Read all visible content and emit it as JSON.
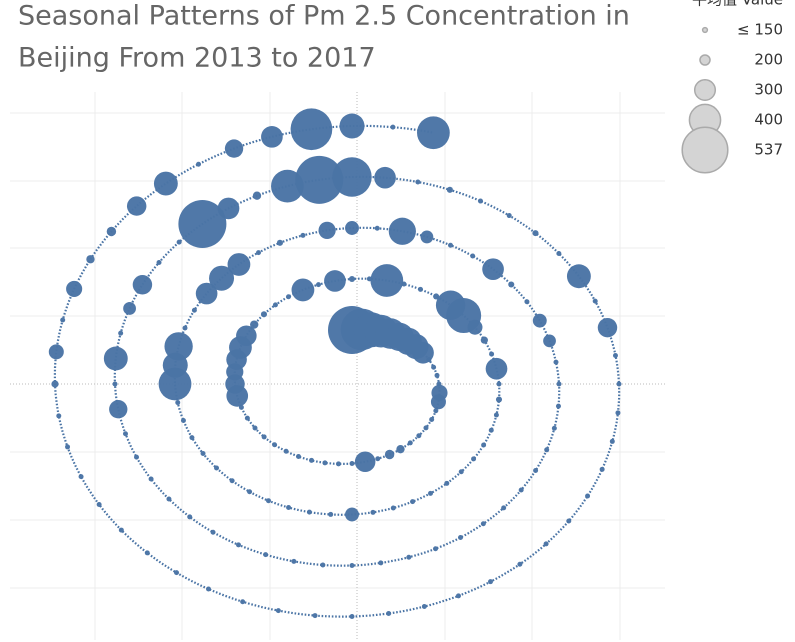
{
  "chart_data": {
    "type": "spiral-bubble",
    "title": [
      "Seasonal Patterns of Pm 2.5 Concentration in",
      "Beijing From 2013 to 2017"
    ],
    "color": "#4a74a5",
    "grid": true,
    "size_legend": {
      "title": "平均值 Value",
      "values": [
        {
          "value": 150,
          "label": "≤ 150"
        },
        200,
        300,
        400,
        537
      ]
    },
    "values": [
      537,
      480,
      420,
      400,
      380,
      360,
      350,
      330,
      300,
      120,
      110,
      100,
      120,
      250,
      240,
      100,
      90,
      110,
      95,
      100,
      180,
      190,
      120,
      290,
      100,
      90,
      80,
      95,
      110,
      100,
      90,
      85,
      100,
      120,
      130,
      300,
      280,
      260,
      290,
      310,
      290,
      180,
      160,
      120,
      110,
      310,
      120,
      300,
      160,
      110,
      400,
      130,
      100,
      160,
      370,
      420,
      240,
      170,
      110,
      300,
      100,
      160,
      150,
      100,
      90,
      95,
      110,
      100,
      90,
      85,
      100,
      110,
      230,
      100,
      90,
      95,
      110,
      100,
      90,
      85,
      100,
      110,
      120,
      130,
      400,
      330,
      360,
      120,
      110,
      300,
      330,
      310,
      110,
      160,
      100,
      260,
      230,
      100,
      350,
      220,
      110,
      120,
      300,
      160,
      100,
      230,
      220,
      100,
      140,
      150,
      100,
      90,
      95,
      110,
      100,
      90,
      85,
      100,
      110,
      150,
      100,
      90,
      95,
      110,
      100,
      90,
      85,
      140,
      100,
      110,
      120,
      270,
      120,
      320,
      100,
      220,
      280,
      110,
      150,
      537,
      300,
      180,
      400,
      537,
      460,
      300,
      120,
      160,
      110,
      100,
      160,
      110,
      320,
      110,
      280,
      100,
      90,
      95,
      110,
      100,
      90,
      85,
      150,
      100,
      110,
      90,
      95,
      100,
      90,
      85,
      100,
      110,
      95,
      90,
      100,
      110,
      95,
      90,
      85,
      150,
      170,
      240,
      100,
      250,
      180,
      190,
      280,
      320,
      110,
      270,
      300,
      480,
      330,
      150,
      400
    ]
  }
}
